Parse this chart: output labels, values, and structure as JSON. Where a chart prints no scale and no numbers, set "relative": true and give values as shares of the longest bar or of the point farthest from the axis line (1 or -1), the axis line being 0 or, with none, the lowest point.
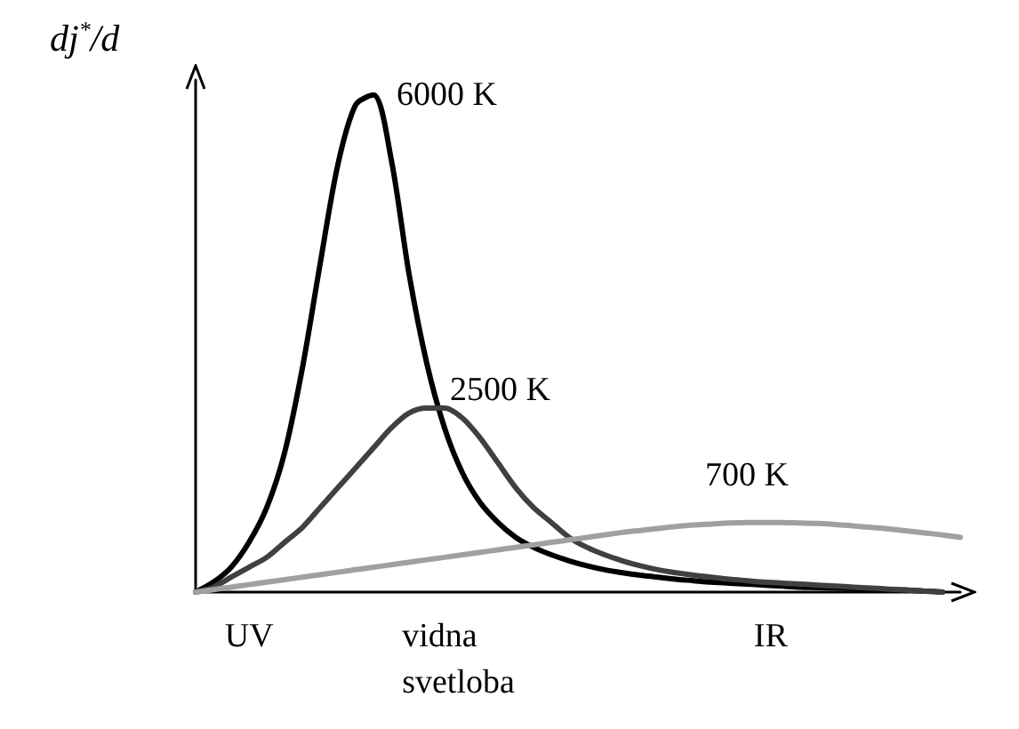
{
  "chart_data": {
    "type": "line",
    "relative": true,
    "ylabel": "dj$^{*}$/d",
    "categories": [
      null,
      null,
      null,
      null,
      null,
      null,
      null,
      null,
      null,
      null,
      null,
      null,
      null,
      null,
      null,
      null,
      null,
      null,
      null,
      null,
      null,
      null,
      null,
      null,
      null,
      null,
      null,
      null,
      null,
      null,
      null,
      null,
      null,
      null,
      null,
      null,
      null,
      null,
      null,
      null,
      null,
      null,
      null,
      null
    ],
    "series": [
      {
        "name": "6000 K",
        "color": "#000000",
        "values": [
          0,
          0.02,
          0.05,
          0.1,
          0.17,
          0.28,
          0.45,
          0.66,
          0.86,
          0.98,
          1,
          0.87,
          0.64,
          0.46,
          0.33,
          0.24,
          0.18,
          0.14,
          0.11,
          0.09,
          0.075,
          0.063,
          0.053,
          0.045,
          0.039,
          0.034,
          0.03,
          0.026,
          0.023,
          0.02,
          0.018,
          0.016,
          0.014,
          0.012,
          0.01,
          0.009,
          0.008,
          0.007,
          0.006,
          0.005,
          0.004,
          0.002,
          0,
          null
        ]
      },
      {
        "name": "2500 K",
        "color": "#404040",
        "values": [
          0,
          0.01,
          0.03,
          0.05,
          0.07,
          0.1,
          0.13,
          0.17,
          0.21,
          0.25,
          0.29,
          0.33,
          0.36,
          0.37,
          0.37,
          0.35,
          0.31,
          0.26,
          0.21,
          0.17,
          0.14,
          0.11,
          0.09,
          0.075,
          0.063,
          0.053,
          0.045,
          0.039,
          0.034,
          0.03,
          0.026,
          0.023,
          0.02,
          0.018,
          0.016,
          0.014,
          0.012,
          0.01,
          0.008,
          0.006,
          0.004,
          0.002,
          0,
          null
        ]
      },
      {
        "name": "700 K",
        "color": "#a0a0a0",
        "values": [
          0,
          0.005,
          0.01,
          0.015,
          0.02,
          0.025,
          0.03,
          0.035,
          0.04,
          0.045,
          0.05,
          0.055,
          0.06,
          0.065,
          0.07,
          0.075,
          0.08,
          0.085,
          0.09,
          0.095,
          0.1,
          0.105,
          0.11,
          0.115,
          0.12,
          0.124,
          0.128,
          0.132,
          0.135,
          0.137,
          0.139,
          0.14,
          0.14,
          0.14,
          0.139,
          0.138,
          0.136,
          0.133,
          0.13,
          0.127,
          0.123,
          0.119,
          0.115,
          0.11
        ]
      }
    ],
    "annotations": [
      "UV",
      "vidna\nsvetloba",
      "IR"
    ],
    "grid": false,
    "legend": false,
    "line_style": "solid"
  }
}
